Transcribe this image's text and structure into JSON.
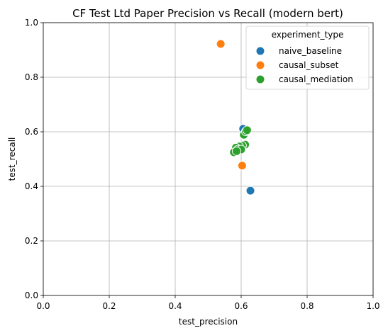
{
  "chart_data": {
    "type": "scatter",
    "title": "CF Test Ltd Paper Precision vs Recall (modern bert)",
    "xlabel": "test_precision",
    "ylabel": "test_recall",
    "xlim": [
      0.0,
      1.0
    ],
    "ylim": [
      0.0,
      1.0
    ],
    "xticks": [
      "0.0",
      "0.2",
      "0.4",
      "0.6",
      "0.8",
      "1.0"
    ],
    "yticks": [
      "0.0",
      "0.2",
      "0.4",
      "0.6",
      "0.8",
      "1.0"
    ],
    "grid": true,
    "legend_placement": "top-right",
    "legend_title": "experiment_type",
    "series": [
      {
        "name": "naive_baseline",
        "color": "#1f77b4",
        "points": [
          {
            "x": 0.606,
            "y": 0.611
          },
          {
            "x": 0.628,
            "y": 0.384
          }
        ]
      },
      {
        "name": "causal_subset",
        "color": "#ff7f0e",
        "points": [
          {
            "x": 0.538,
            "y": 0.922
          },
          {
            "x": 0.603,
            "y": 0.476
          }
        ]
      },
      {
        "name": "causal_mediation",
        "color": "#2ca02c",
        "points": [
          {
            "x": 0.608,
            "y": 0.589
          },
          {
            "x": 0.614,
            "y": 0.601
          },
          {
            "x": 0.618,
            "y": 0.606
          },
          {
            "x": 0.612,
            "y": 0.553
          },
          {
            "x": 0.603,
            "y": 0.549
          },
          {
            "x": 0.594,
            "y": 0.546
          },
          {
            "x": 0.584,
            "y": 0.542
          },
          {
            "x": 0.59,
            "y": 0.535
          },
          {
            "x": 0.6,
            "y": 0.535
          },
          {
            "x": 0.578,
            "y": 0.525
          },
          {
            "x": 0.586,
            "y": 0.529
          }
        ]
      }
    ]
  }
}
